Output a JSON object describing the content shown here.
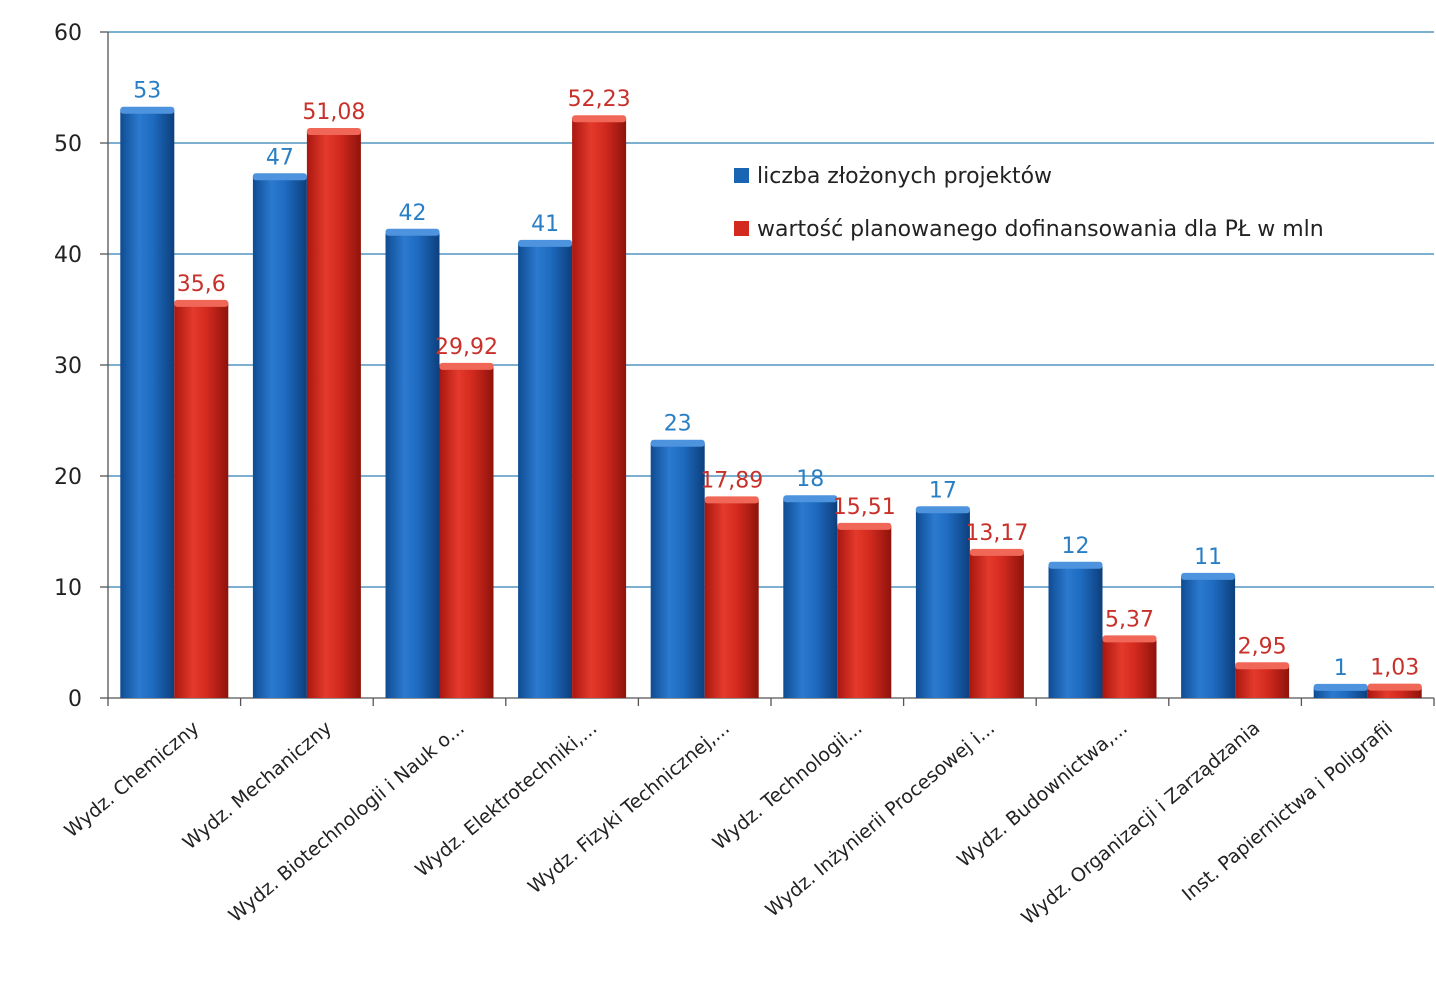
{
  "chart_data": {
    "type": "bar",
    "categories": [
      "Wydz. Chemiczny",
      "Wydz. Mechaniczny",
      "Wydz. Biotechnologii i Nauk o...",
      "Wydz. Elektrotechniki,...",
      "Wydz. Fizyki Technicznej,...",
      "Wydz. Technologii...",
      "Wydz. Inżynierii Procesowej i...",
      "Wydz. Budownictwa,...",
      "Wydz. Organizacji i Zarządzania",
      "Inst. Papiernictwa i Poligrafii"
    ],
    "series": [
      {
        "name": "liczba złożonych projektów",
        "values": [
          53,
          47,
          42,
          41,
          23,
          18,
          17,
          12,
          11,
          1
        ],
        "labels": [
          "53",
          "47",
          "42",
          "41",
          "23",
          "18",
          "17",
          "12",
          "11",
          "1"
        ],
        "color": "#1a64b4",
        "label_color": "#2a7fc4"
      },
      {
        "name": "wartość planowanego dofinansowania dla PŁ w mln",
        "values": [
          35.6,
          51.08,
          29.92,
          52.23,
          17.89,
          15.51,
          13.17,
          5.37,
          2.95,
          1.03
        ],
        "labels": [
          "35,6",
          "51,08",
          "29,92",
          "52,23",
          "17,89",
          "15,51",
          "13,17",
          "5,37",
          "2,95",
          "1,03"
        ],
        "color": "#d32a1f",
        "label_color": "#c8302a"
      }
    ],
    "yticks": [
      "0",
      "10",
      "20",
      "30",
      "40",
      "50",
      "60"
    ],
    "ylim": [
      0,
      60
    ],
    "grid": true,
    "legend_position": "top-right",
    "gridline_color": "#2f7fb5"
  }
}
